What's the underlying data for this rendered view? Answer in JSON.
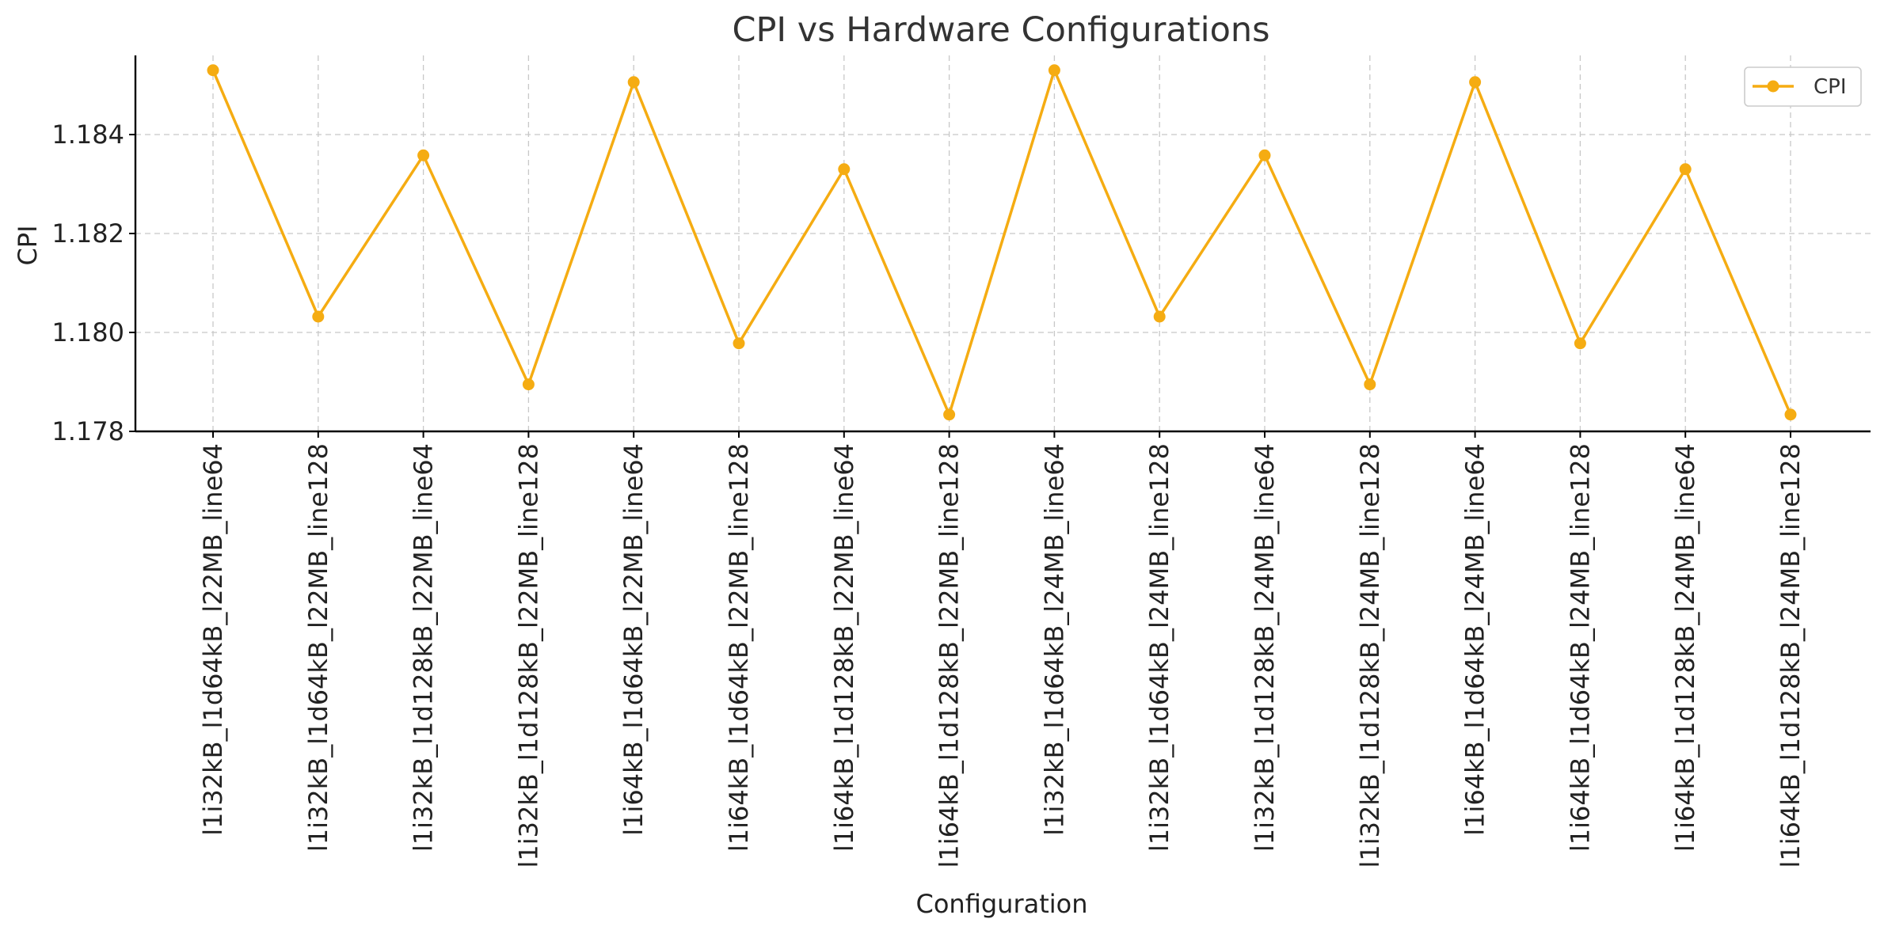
{
  "chart_data": {
    "type": "line",
    "title": "CPI vs Hardware Configurations",
    "xlabel": "Configuration",
    "ylabel": "CPI",
    "categories": [
      "l1i32kB_l1d64kB_l22MB_line64",
      "l1i32kB_l1d64kB_l22MB_line128",
      "l1i32kB_l1d128kB_l22MB_line64",
      "l1i32kB_l1d128kB_l22MB_line128",
      "l1i64kB_l1d64kB_l22MB_line64",
      "l1i64kB_l1d64kB_l22MB_line128",
      "l1i64kB_l1d128kB_l22MB_line64",
      "l1i64kB_l1d128kB_l22MB_line128",
      "l1i32kB_l1d64kB_l24MB_line64",
      "l1i32kB_l1d64kB_l24MB_line128",
      "l1i32kB_l1d128kB_l24MB_line64",
      "l1i32kB_l1d128kB_l24MB_line128",
      "l1i64kB_l1d64kB_l24MB_line64",
      "l1i64kB_l1d64kB_l24MB_line128",
      "l1i64kB_l1d128kB_l24MB_line64",
      "l1i64kB_l1d128kB_l24MB_line128"
    ],
    "series": [
      {
        "name": "CPI",
        "color": "#f5ac12",
        "marker": "circle",
        "values": [
          1.1853,
          1.18032,
          1.18358,
          1.17895,
          1.18506,
          1.17978,
          1.1833,
          1.17834,
          1.1853,
          1.18032,
          1.18358,
          1.17895,
          1.18506,
          1.17978,
          1.1833,
          1.17834
        ]
      }
    ],
    "ylim": [
      1.178,
      1.1856
    ],
    "yticks": [
      "1.178",
      "1.180",
      "1.182",
      "1.184"
    ],
    "grid": true,
    "legend_position": "top-right"
  }
}
